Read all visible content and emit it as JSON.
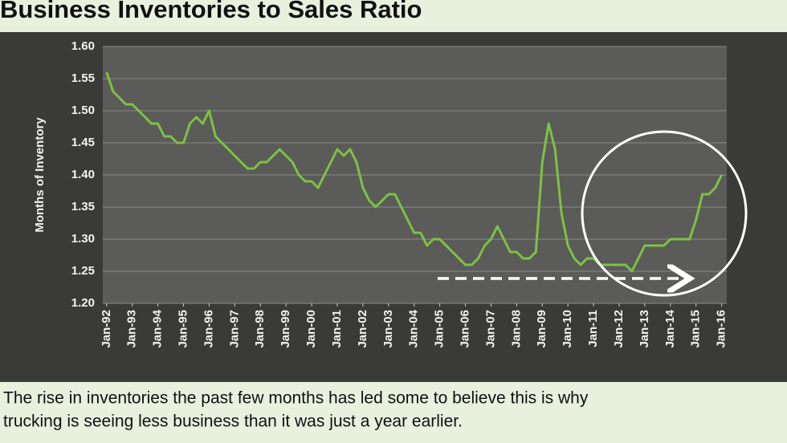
{
  "header": {
    "title": "Business Inventories to Sales Ratio"
  },
  "caption": [
    "The rise in inventories the past few months has led some to believe this is why",
    "trucking is seeing less business than it was just a year earlier."
  ],
  "chart_data": {
    "type": "line",
    "ylabel": "Months of Inventory",
    "color": "#7dc242",
    "grid": true,
    "xlim": [
      1991.85,
      2016.2
    ],
    "xticks": [
      {
        "value": 1992,
        "label": "Jan-92"
      },
      {
        "value": 1993,
        "label": "Jan-93"
      },
      {
        "value": 1994,
        "label": "Jan-94"
      },
      {
        "value": 1995,
        "label": "Jan-95"
      },
      {
        "value": 1996,
        "label": "Jan-96"
      },
      {
        "value": 1997,
        "label": "Jan-97"
      },
      {
        "value": 1998,
        "label": "Jan-98"
      },
      {
        "value": 1999,
        "label": "Jan-99"
      },
      {
        "value": 2000,
        "label": "Jan-00"
      },
      {
        "value": 2001,
        "label": "Jan-01"
      },
      {
        "value": 2002,
        "label": "Jan-02"
      },
      {
        "value": 2003,
        "label": "Jan-03"
      },
      {
        "value": 2004,
        "label": "Jan-04"
      },
      {
        "value": 2005,
        "label": "Jan-05"
      },
      {
        "value": 2006,
        "label": "Jan-06"
      },
      {
        "value": 2007,
        "label": "Jan-07"
      },
      {
        "value": 2008,
        "label": "Jan-08"
      },
      {
        "value": 2009,
        "label": "Jan-09"
      },
      {
        "value": 2010,
        "label": "Jan-10"
      },
      {
        "value": 2011,
        "label": "Jan-11"
      },
      {
        "value": 2012,
        "label": "Jan-12"
      },
      {
        "value": 2013,
        "label": "Jan-13"
      },
      {
        "value": 2014,
        "label": "Jan-14"
      },
      {
        "value": 2015,
        "label": "Jan-15"
      },
      {
        "value": 2016,
        "label": "Jan-16"
      }
    ],
    "ylim": [
      1.2,
      1.6
    ],
    "yticks": [
      {
        "value": 1.2,
        "label": "1.20"
      },
      1.25,
      {
        "value": 1.3,
        "label": "1.30"
      },
      1.35,
      {
        "value": 1.4,
        "label": "1.40"
      },
      1.45,
      {
        "value": 1.5,
        "label": "1.50"
      },
      1.55,
      {
        "value": 1.6,
        "label": "1.60"
      }
    ],
    "x": [
      1992,
      1992.25,
      1992.5,
      1992.75,
      1993,
      1993.25,
      1993.5,
      1993.75,
      1994,
      1994.25,
      1994.5,
      1994.75,
      1995,
      1995.25,
      1995.5,
      1995.75,
      1996,
      1996.25,
      1996.5,
      1996.75,
      1997,
      1997.25,
      1997.5,
      1997.75,
      1998,
      1998.25,
      1998.5,
      1998.75,
      1999,
      1999.25,
      1999.5,
      1999.75,
      2000,
      2000.25,
      2000.5,
      2000.75,
      2001,
      2001.25,
      2001.5,
      2001.75,
      2002,
      2002.25,
      2002.5,
      2002.75,
      2003,
      2003.25,
      2003.5,
      2003.75,
      2004,
      2004.25,
      2004.5,
      2004.75,
      2005,
      2005.25,
      2005.5,
      2005.75,
      2006,
      2006.25,
      2006.5,
      2006.75,
      2007,
      2007.25,
      2007.5,
      2007.75,
      2008,
      2008.25,
      2008.5,
      2008.75,
      2009,
      2009.25,
      2009.5,
      2009.75,
      2010,
      2010.25,
      2010.5,
      2010.75,
      2011,
      2011.25,
      2011.5,
      2011.75,
      2012,
      2012.25,
      2012.5,
      2012.75,
      2013,
      2013.25,
      2013.5,
      2013.75,
      2014,
      2014.25,
      2014.5,
      2014.75,
      2015,
      2015.25,
      2015.5,
      2015.75,
      2016
    ],
    "values": [
      1.56,
      1.53,
      1.52,
      1.51,
      1.51,
      1.5,
      1.49,
      1.48,
      1.48,
      1.46,
      1.46,
      1.45,
      1.45,
      1.48,
      1.49,
      1.48,
      1.5,
      1.46,
      1.45,
      1.44,
      1.43,
      1.42,
      1.41,
      1.41,
      1.42,
      1.42,
      1.43,
      1.44,
      1.43,
      1.42,
      1.4,
      1.39,
      1.39,
      1.38,
      1.4,
      1.42,
      1.44,
      1.43,
      1.44,
      1.42,
      1.38,
      1.36,
      1.35,
      1.36,
      1.37,
      1.37,
      1.35,
      1.33,
      1.31,
      1.31,
      1.29,
      1.3,
      1.3,
      1.29,
      1.28,
      1.27,
      1.26,
      1.26,
      1.27,
      1.29,
      1.3,
      1.32,
      1.3,
      1.28,
      1.28,
      1.27,
      1.27,
      1.28,
      1.42,
      1.48,
      1.44,
      1.34,
      1.29,
      1.27,
      1.26,
      1.27,
      1.27,
      1.26,
      1.26,
      1.26,
      1.26,
      1.26,
      1.25,
      1.27,
      1.29,
      1.29,
      1.29,
      1.29,
      1.3,
      1.3,
      1.3,
      1.3,
      1.33,
      1.37,
      1.37,
      1.38,
      1.4
    ]
  }
}
